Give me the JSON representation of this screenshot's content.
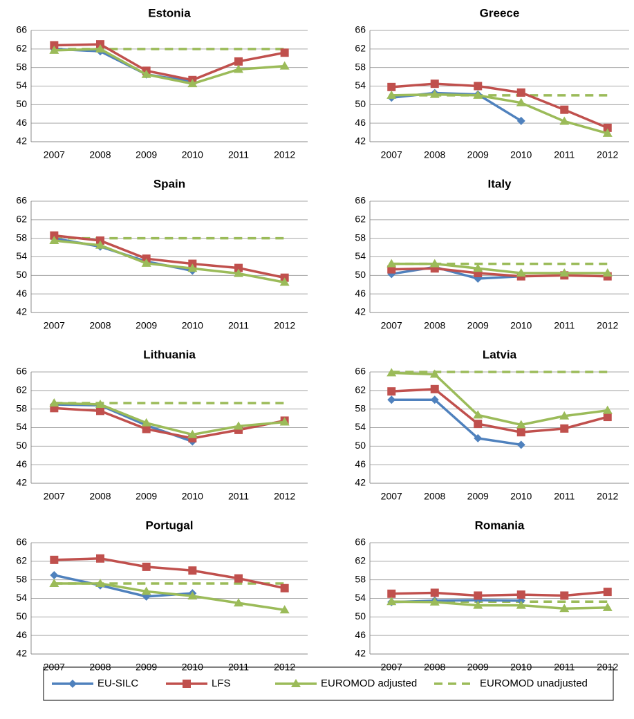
{
  "chart_data": {
    "type": "line",
    "categories": [
      "2007",
      "2008",
      "2009",
      "2010",
      "2011",
      "2012"
    ],
    "ylim": [
      42,
      66
    ],
    "yticks": [
      42,
      46,
      50,
      54,
      58,
      62,
      66
    ],
    "grid": true,
    "series": [
      {
        "name": "EU-SILC",
        "color": "#4f81bd",
        "marker": "diamond",
        "dash": false
      },
      {
        "name": "LFS",
        "color": "#c0504d",
        "marker": "square",
        "dash": false
      },
      {
        "name": "EUROMOD adjusted",
        "color": "#9bbb59",
        "marker": "triangle",
        "dash": false
      },
      {
        "name": "EUROMOD unadjusted",
        "color": "#9bbb59",
        "marker": "none",
        "dash": true
      }
    ],
    "panels": [
      {
        "title": "Estonia",
        "series": [
          {
            "values": [
              62,
              61.5,
              56.5,
              55,
              null,
              null
            ]
          },
          {
            "values": [
              62.8,
              63,
              57.3,
              55.3,
              59.3,
              61.2
            ]
          },
          {
            "values": [
              61.7,
              62,
              56.5,
              54.5,
              57.6,
              58.3
            ]
          },
          {
            "values": [
              62,
              62,
              62,
              62,
              62,
              62
            ]
          }
        ]
      },
      {
        "title": "Greece",
        "series": [
          {
            "values": [
              51.5,
              52.5,
              52.2,
              46.5,
              null,
              null
            ]
          },
          {
            "values": [
              53.8,
              54.5,
              54,
              52.6,
              48.9,
              45
            ]
          },
          {
            "values": [
              52,
              52.2,
              52,
              50.4,
              46.4,
              43.8
            ]
          },
          {
            "values": [
              52,
              52,
              52,
              52,
              52,
              52
            ]
          }
        ]
      },
      {
        "title": "Spain",
        "series": [
          {
            "values": [
              58,
              56.2,
              53,
              51,
              null,
              null
            ]
          },
          {
            "values": [
              58.6,
              57.5,
              53.6,
              52.5,
              51.6,
              49.5
            ]
          },
          {
            "values": [
              57.5,
              56.5,
              52.6,
              51.5,
              50.4,
              48.5
            ]
          },
          {
            "values": [
              58,
              58,
              58,
              58,
              58,
              58
            ]
          }
        ]
      },
      {
        "title": "Italy",
        "series": [
          {
            "values": [
              50.3,
              51.8,
              49.3,
              49.8,
              null,
              null
            ]
          },
          {
            "values": [
              51.3,
              51.5,
              50.5,
              49.8,
              50,
              49.8
            ]
          },
          {
            "values": [
              52.5,
              52.5,
              51.5,
              50.5,
              50.5,
              50.5
            ]
          },
          {
            "values": [
              52.5,
              52.5,
              52.5,
              52.5,
              52.5,
              52.5
            ]
          }
        ]
      },
      {
        "title": "Lithuania",
        "series": [
          {
            "values": [
              59,
              58.8,
              54.5,
              51,
              null,
              null
            ]
          },
          {
            "values": [
              58.2,
              57.6,
              53.7,
              51.7,
              53.5,
              55.5
            ]
          },
          {
            "values": [
              59.3,
              59,
              55,
              52.5,
              54.3,
              55.2
            ]
          },
          {
            "values": [
              59.3,
              59.3,
              59.3,
              59.3,
              59.3,
              59.3
            ]
          }
        ]
      },
      {
        "title": "Latvia",
        "series": [
          {
            "values": [
              60,
              60,
              51.7,
              50.3,
              null,
              null
            ]
          },
          {
            "values": [
              61.8,
              62.3,
              54.8,
              53,
              53.8,
              56.3
            ]
          },
          {
            "values": [
              65.8,
              65.5,
              56.7,
              54.6,
              56.5,
              57.7
            ]
          },
          {
            "values": [
              66,
              66,
              66,
              66,
              66,
              66
            ]
          }
        ]
      },
      {
        "title": "Portugal",
        "series": [
          {
            "values": [
              59,
              56.8,
              54.4,
              55.1,
              null,
              null
            ]
          },
          {
            "values": [
              62.3,
              62.6,
              60.8,
              60,
              58.3,
              56.2
            ]
          },
          {
            "values": [
              57.2,
              57.2,
              55.5,
              54.5,
              53,
              51.5
            ]
          },
          {
            "values": [
              57.2,
              57.2,
              57.2,
              57.2,
              57.2,
              57.2
            ]
          }
        ]
      },
      {
        "title": "Romania",
        "series": [
          {
            "values": [
              53.2,
              53.5,
              53.6,
              53.5,
              null,
              null
            ]
          },
          {
            "values": [
              55,
              55.2,
              54.6,
              54.8,
              54.6,
              55.4
            ]
          },
          {
            "values": [
              53.3,
              53.2,
              52.5,
              52.5,
              51.8,
              52
            ]
          },
          {
            "values": [
              53.3,
              53.3,
              53.3,
              53.3,
              53.3,
              53.3
            ]
          }
        ]
      }
    ]
  }
}
